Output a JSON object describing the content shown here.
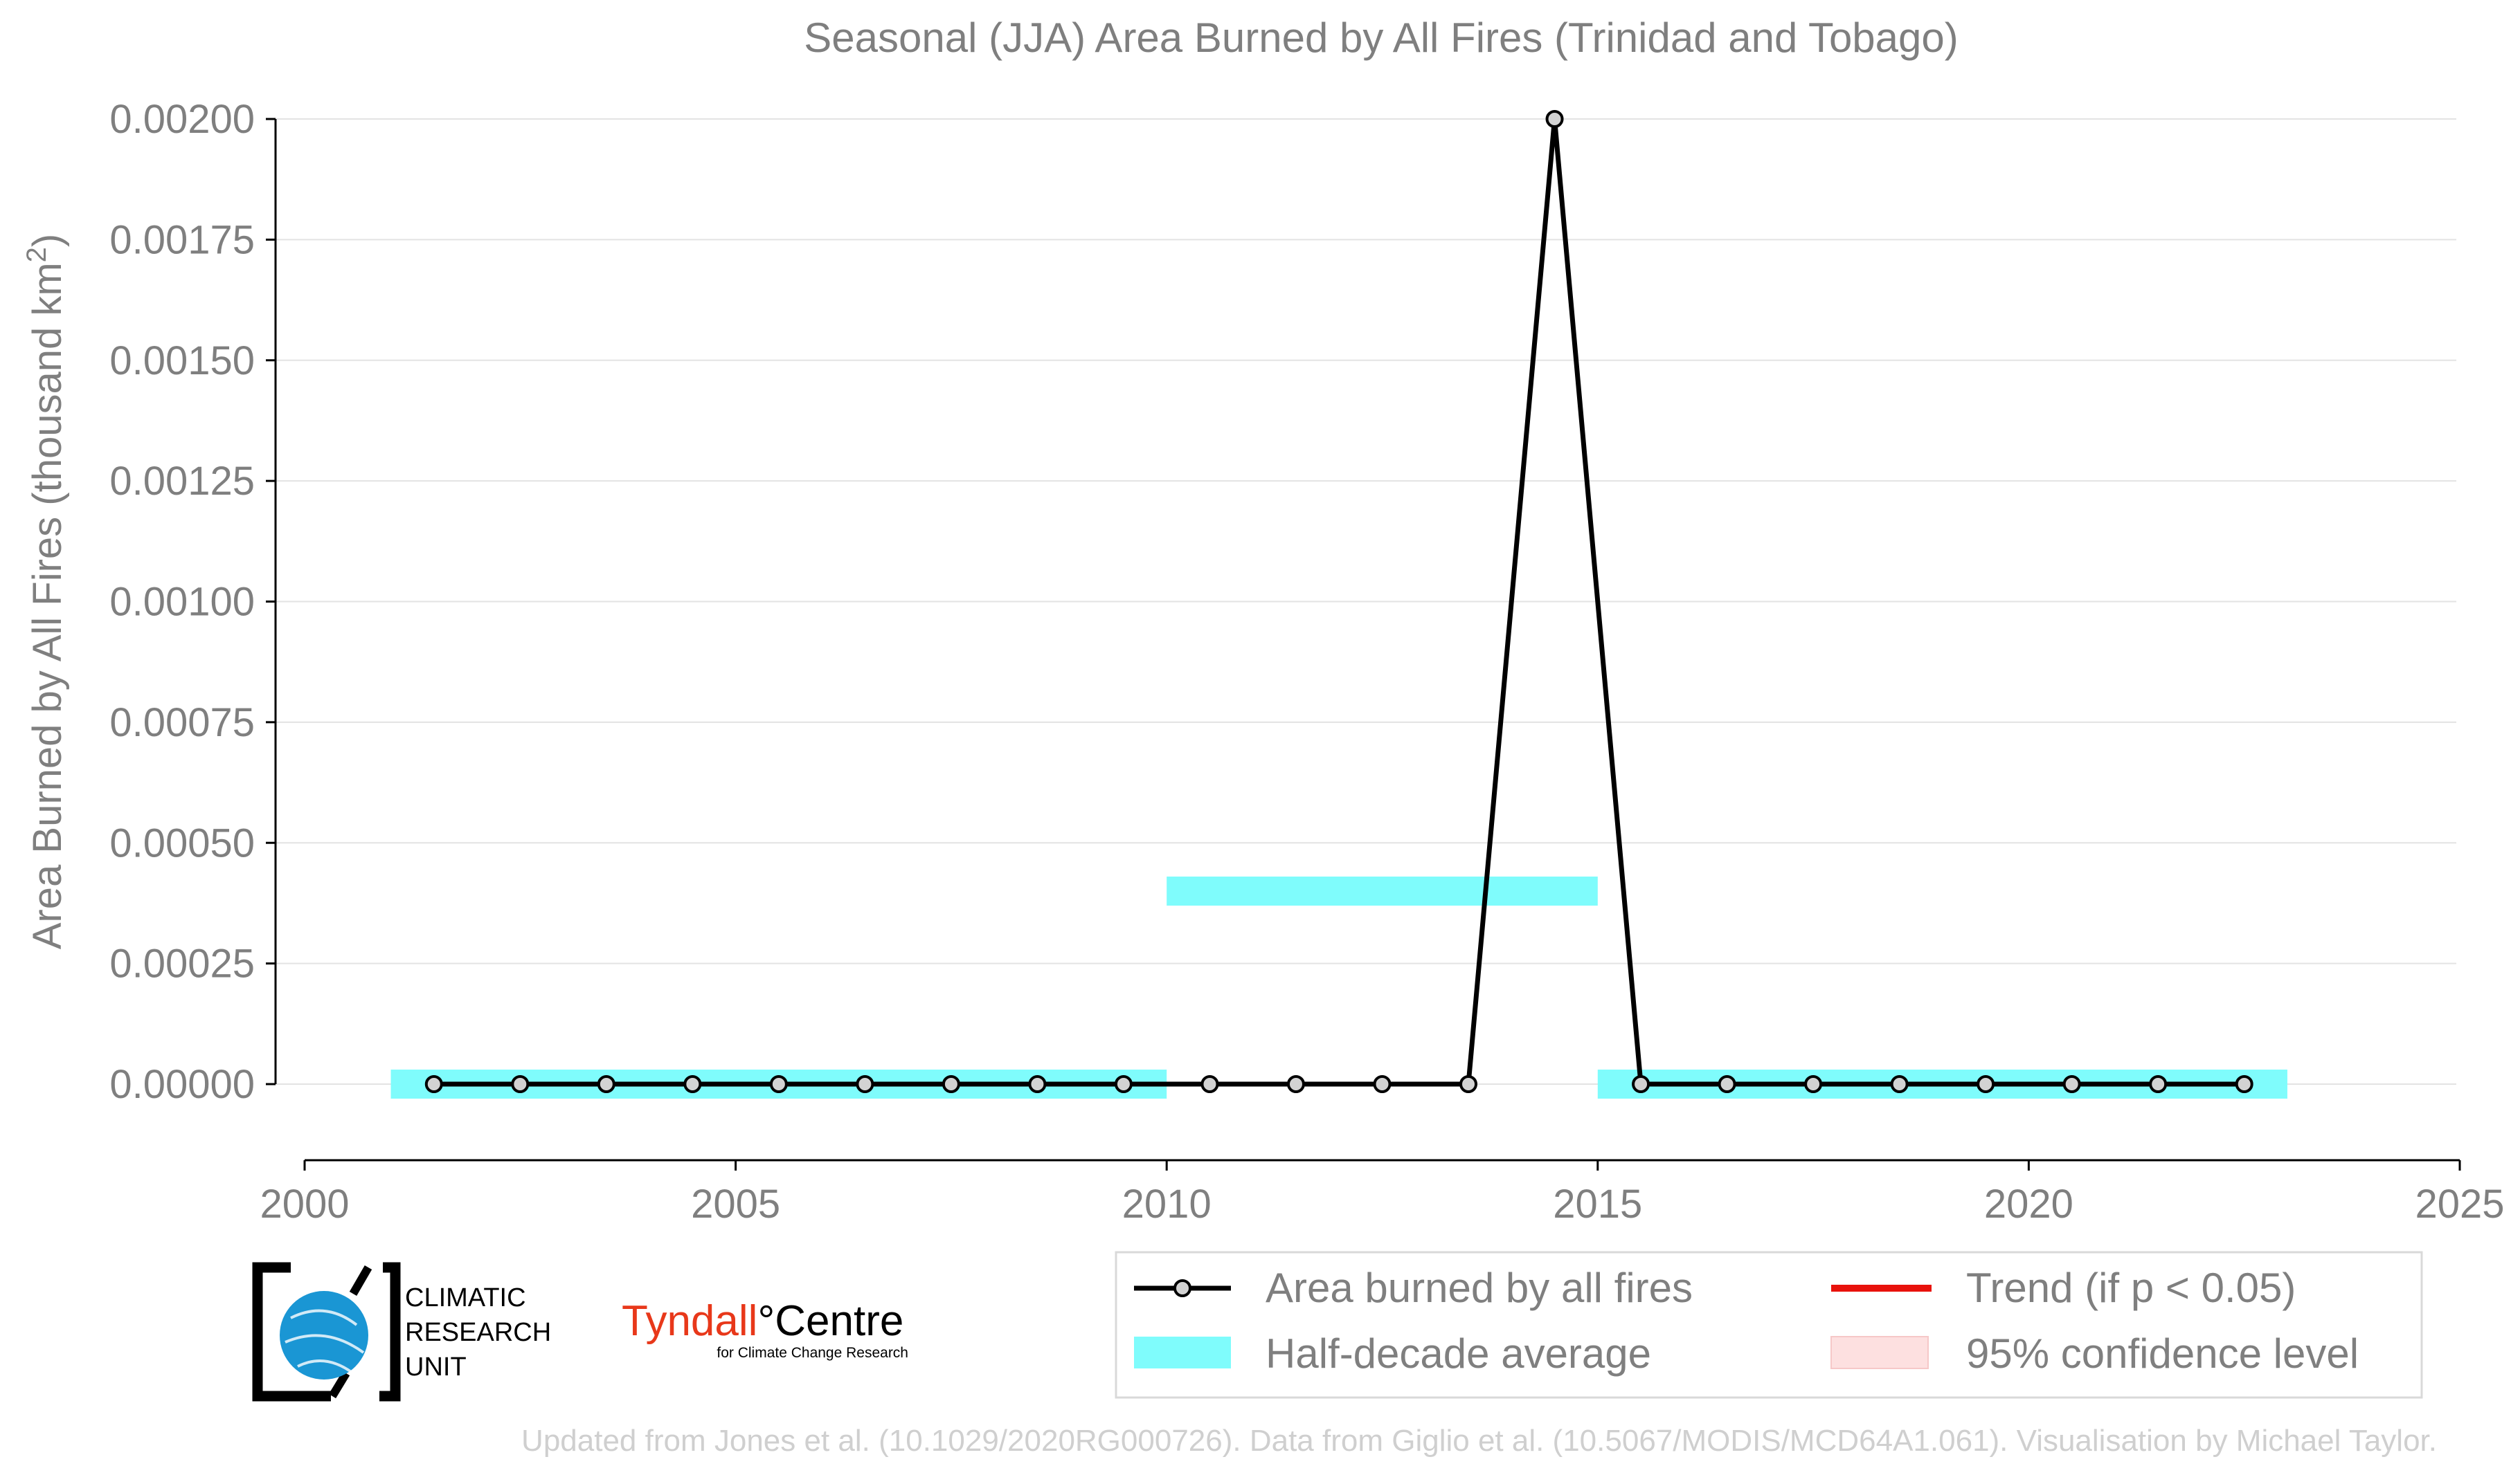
{
  "chart_data": {
    "type": "line",
    "title": "Seasonal (JJA) Area Burned by All Fires (Trinidad and Tobago)",
    "xlabel": "",
    "ylabel": "Area Burned by All Fires (thousand km",
    "ylabel_sup": "2",
    "ylabel_end": ")",
    "xlim": [
      2000,
      2025
    ],
    "ylim": [
      -0.00015,
      0.002
    ],
    "x_ticks": [
      2000,
      2005,
      2010,
      2015,
      2020,
      2025
    ],
    "x_tick_labels": [
      "2000",
      "2005",
      "2010",
      "2015",
      "2020",
      "2025"
    ],
    "y_ticks": [
      0,
      0.00025,
      0.0005,
      0.00075,
      0.001,
      0.00125,
      0.0015,
      0.00175,
      0.002
    ],
    "y_tick_labels": [
      "0.00000",
      "0.00025",
      "0.00050",
      "0.00075",
      "0.00100",
      "0.00125",
      "0.00150",
      "0.00175",
      "0.00200"
    ],
    "grid": "horizontal",
    "series": [
      {
        "name": "Area burned by all fires",
        "color": "#000000",
        "marker_fill": "#d3d3d3",
        "x": [
          2001.5,
          2002.5,
          2003.5,
          2004.5,
          2005.5,
          2006.5,
          2007.5,
          2008.5,
          2009.5,
          2010.5,
          2011.5,
          2012.5,
          2013.5,
          2014.5,
          2015.5,
          2016.5,
          2017.5,
          2018.5,
          2019.5,
          2020.5,
          2021.5,
          2022.5
        ],
        "y": [
          0,
          0,
          0,
          0,
          0,
          0,
          0,
          0,
          0,
          0,
          0,
          0,
          0,
          0.002,
          0,
          0,
          0,
          0,
          0,
          0,
          0,
          0
        ]
      }
    ],
    "half_decade_average": {
      "name": "Half-decade average",
      "color": "#7ffcfc",
      "segments": [
        {
          "x_start": 2001,
          "x_end": 2010,
          "value": 0
        },
        {
          "x_start": 2010,
          "x_end": 2015,
          "value": 0.0004
        },
        {
          "x_start": 2015,
          "x_end": 2023,
          "value": 0
        }
      ]
    },
    "legend": {
      "placement": "bottom-right",
      "entries": [
        {
          "label": "Area burned by all fires",
          "style": "line-marker",
          "color": "#000000"
        },
        {
          "label": "Trend (if p < 0.05)",
          "style": "line",
          "color": "#e8120c"
        },
        {
          "label": "Half-decade average",
          "style": "band",
          "color": "#7ffcfc"
        },
        {
          "label": "95% confidence level",
          "style": "band",
          "color": "#fde0e0"
        }
      ]
    }
  },
  "logos": {
    "cru_lines": [
      "CLIMATIC",
      "RESEARCH",
      "UNIT"
    ],
    "tyndall_main": "Tyndall",
    "tyndall_degree": "°",
    "tyndall_centre": "Centre",
    "tyndall_sub": "for Climate Change Research",
    "tyndall_red": "#e8381a"
  },
  "footer": "Updated from Jones et al. (10.1029/2020RG000726). Data from Giglio et al. (10.5067/MODIS/MCD64A1.061). Visualisation by Michael Taylor."
}
